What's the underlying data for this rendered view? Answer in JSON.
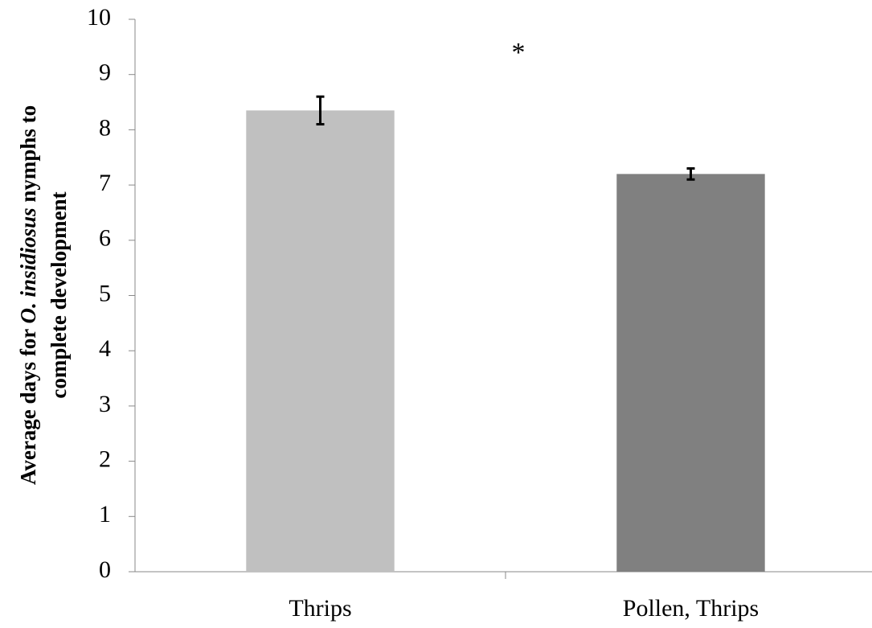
{
  "chart_data": {
    "type": "bar",
    "ylabel": {
      "line1": [
        "Average days for ",
        "O. insidiosus",
        " nymphs to"
      ],
      "line2": "complete development"
    },
    "categories": [
      "Thrips",
      "Pollen, Thrips"
    ],
    "values": [
      8.35,
      7.2
    ],
    "errors": [
      0.25,
      0.1
    ],
    "colors": [
      "#c0c0c0",
      "#808080"
    ],
    "annotation": "*",
    "ylim": [
      0,
      10
    ],
    "yticks": [
      0,
      1,
      2,
      3,
      4,
      5,
      6,
      7,
      8,
      9,
      10
    ],
    "grid": false
  }
}
